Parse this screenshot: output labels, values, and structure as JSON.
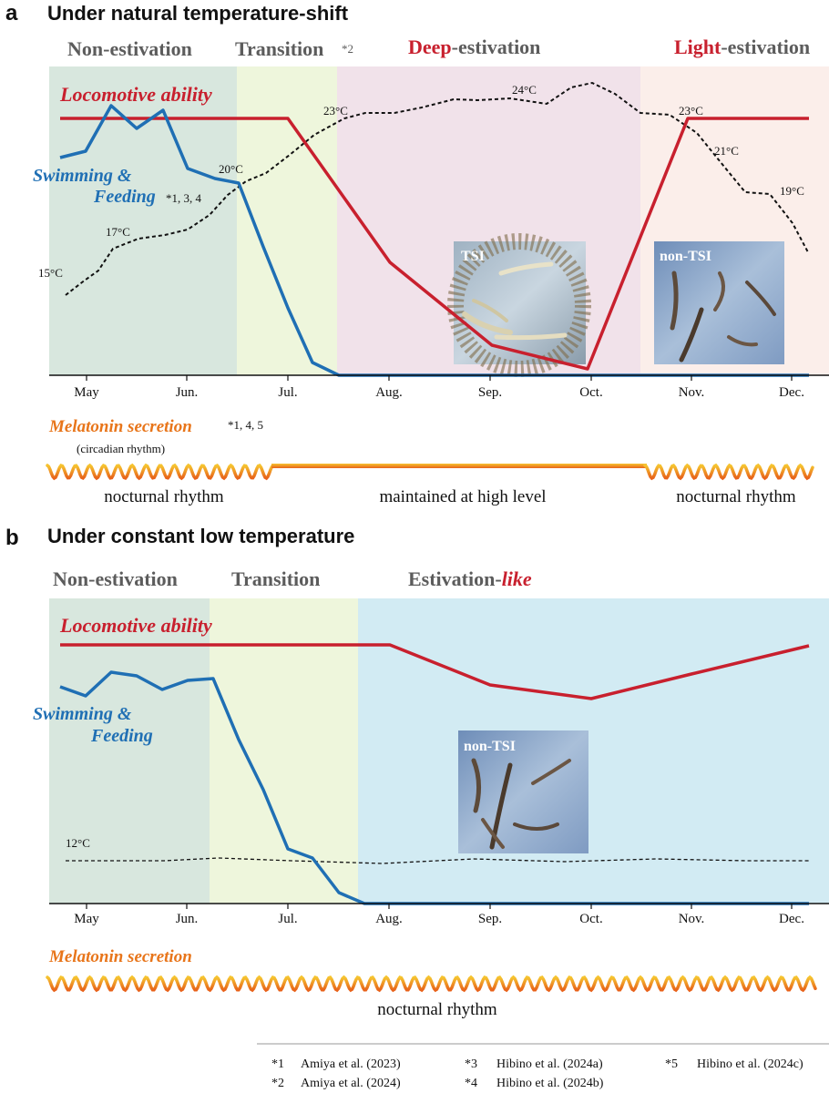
{
  "panel_a": {
    "letter": "a",
    "title": "Under natural temperature-shift",
    "phases": {
      "non_estivation": "Non-estivation",
      "transition": "Transition",
      "transition_ref": "*2",
      "deep_word": "Deep",
      "deep_rest": "-estivation",
      "light_word": "Light",
      "light_rest": "-estivation"
    },
    "locomotive_label": "Locomotive ability",
    "swimming_label_1": "Swimming &",
    "swimming_label_2": "Feeding",
    "swimming_refs": "*1, 3, 4",
    "months": [
      "May",
      "Jun.",
      "Jul.",
      "Aug.",
      "Sep.",
      "Oct.",
      "Nov.",
      "Dec."
    ],
    "temp_labels": [
      "15°C",
      "17°C",
      "20°C",
      "23°C",
      "24°C",
      "23°C",
      "21°C",
      "19°C"
    ],
    "photo_tsi_label": "TSI",
    "photo_nontsi_label": "non-TSI",
    "melatonin_label": "Melatonin secretion",
    "melatonin_refs": "*1, 4, 5",
    "circadian_label": "(circadian rhythm)",
    "rhythm_labels": {
      "left": "nocturnal rhythm",
      "middle": "maintained at high level",
      "right": "nocturnal rhythm"
    }
  },
  "panel_b": {
    "letter": "b",
    "title": "Under constant low temperature",
    "phases": {
      "non_estivation": "Non-estivation",
      "transition": "Transition",
      "estivation_word": "Estivation-",
      "like_word": "like"
    },
    "locomotive_label": "Locomotive ability",
    "swimming_label_1": "Swimming &",
    "swimming_label_2": "Feeding",
    "months": [
      "May",
      "Jun.",
      "Jul.",
      "Aug.",
      "Sep.",
      "Oct.",
      "Nov.",
      "Dec."
    ],
    "temp_label": "12°C",
    "photo_nontsi_label": "non-TSI",
    "melatonin_label": "Melatonin secretion",
    "rhythm_label": "nocturnal rhythm"
  },
  "references": [
    {
      "key": "*1",
      "text": "Amiya et al. (2023)"
    },
    {
      "key": "*2",
      "text": "Amiya et al. (2024)"
    },
    {
      "key": "*3",
      "text": "Hibino et al. (2024a)"
    },
    {
      "key": "*4",
      "text": "Hibino et al. (2024b)"
    },
    {
      "key": "*5",
      "text": "Hibino et al. (2024c)"
    }
  ],
  "colors": {
    "locomotive": "#c8202e",
    "swimming": "#1f6fb4",
    "melatonin": "#e8751a",
    "non_estivation_bg": "#d8e7de",
    "transition_bg": "#eef6dc",
    "deep_bg": "#f1e2ea",
    "light_bg": "#fbeeea",
    "estivation_like_bg": "#d2ebf3",
    "phase_text": "#5c5c5c"
  }
}
